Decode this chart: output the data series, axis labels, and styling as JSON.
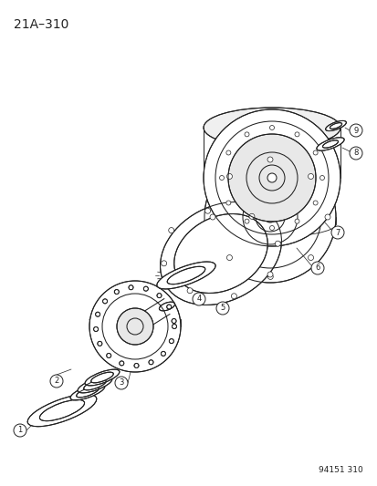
{
  "title": "21A–310",
  "watermark": "94151 310",
  "bg_color": "#ffffff",
  "line_color": "#222222",
  "title_fontsize": 10,
  "watermark_fontsize": 6.5,
  "fig_width": 4.14,
  "fig_height": 5.33,
  "dpi": 100
}
